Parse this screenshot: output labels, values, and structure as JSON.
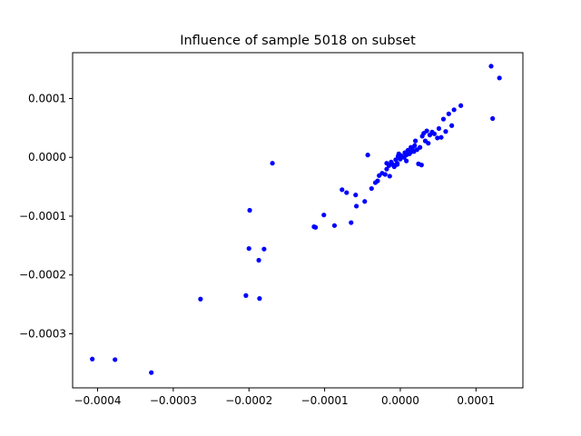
{
  "chart_data": {
    "type": "scatter",
    "title": "Influence of sample 5018 on subset",
    "xlabel": "",
    "ylabel": "",
    "xlim": [
      -0.000433,
      0.000162
    ],
    "ylim": [
      -0.000392,
      0.000178
    ],
    "xticks": [
      {
        "value": -0.0004,
        "label": "−0.0004"
      },
      {
        "value": -0.0003,
        "label": "−0.0003"
      },
      {
        "value": -0.0002,
        "label": "−0.0002"
      },
      {
        "value": -0.0001,
        "label": "−0.0001"
      },
      {
        "value": 0.0,
        "label": "0.0000"
      },
      {
        "value": 0.0001,
        "label": "0.0001"
      }
    ],
    "yticks": [
      {
        "value": 0.0001,
        "label": "0.0001"
      },
      {
        "value": 0.0,
        "label": "0.0000"
      },
      {
        "value": -0.0001,
        "label": "−0.0001"
      },
      {
        "value": -0.0002,
        "label": "−0.0002"
      },
      {
        "value": -0.0003,
        "label": "−0.0003"
      }
    ],
    "grid": false,
    "color": "#0000ff",
    "points": [
      [
        -0.000407,
        -0.000343
      ],
      [
        -0.000377,
        -0.000344
      ],
      [
        -0.000329,
        -0.000366
      ],
      [
        -0.000264,
        -0.000241
      ],
      [
        -0.000204,
        -0.000235
      ],
      [
        -0.000186,
        -0.00024
      ],
      [
        -0.0002,
        -0.000155
      ],
      [
        -0.000187,
        -0.000175
      ],
      [
        -0.00018,
        -0.000156
      ],
      [
        -0.000199,
        -9e-05
      ],
      [
        -0.000169,
        -1e-05
      ],
      [
        -0.000114,
        -0.000118
      ],
      [
        -0.000112,
        -0.000119
      ],
      [
        -0.000101,
        -9.8e-05
      ],
      [
        -8.7e-05,
        -0.000116
      ],
      [
        -7.7e-05,
        -5.5e-05
      ],
      [
        -7.1e-05,
        -6e-05
      ],
      [
        -6.5e-05,
        -0.000111
      ],
      [
        -5.9e-05,
        -6.4e-05
      ],
      [
        -5.8e-05,
        -8.3e-05
      ],
      [
        -4.7e-05,
        -7.5e-05
      ],
      [
        -4.3e-05,
        4e-06
      ],
      [
        -3.8e-05,
        -5.3e-05
      ],
      [
        -3.3e-05,
        -4.3e-05
      ],
      [
        -3e-05,
        -4e-05
      ],
      [
        -2.8e-05,
        -3.1e-05
      ],
      [
        -2.4e-05,
        -2.7e-05
      ],
      [
        -2e-05,
        -2.9e-05
      ],
      [
        -1.8e-05,
        -2e-05
      ],
      [
        -1.5e-05,
        -1.4e-05
      ],
      [
        -1.4e-05,
        -3.2e-05
      ],
      [
        -1.2e-05,
        -8e-06
      ],
      [
        -1e-05,
        -1.2e-05
      ],
      [
        -8e-06,
        -1.6e-05
      ],
      [
        -6e-06,
        -4e-06
      ],
      [
        -4e-06,
        -1e-05
      ],
      [
        -3e-06,
        2e-06
      ],
      [
        -2e-06,
        6e-06
      ],
      [
        0.0,
        -3e-06
      ],
      [
        1e-06,
        3e-06
      ],
      [
        3e-06,
        1e-06
      ],
      [
        5e-06,
        0.0
      ],
      [
        6e-06,
        8e-06
      ],
      [
        8e-06,
        4e-06
      ],
      [
        1e-05,
        1.2e-05
      ],
      [
        1.2e-05,
        6e-06
      ],
      [
        1.4e-05,
        9e-06
      ],
      [
        1.6e-05,
        1.6e-05
      ],
      [
        1.8e-05,
        1e-05
      ],
      [
        1.9e-05,
        2e-05
      ],
      [
        2e-05,
        2.8e-05
      ],
      [
        2.2e-05,
        1.3e-05
      ],
      [
        2.4e-05,
        -1.1e-05
      ],
      [
        2.6e-05,
        1.7e-05
      ],
      [
        2.8e-05,
        -1.3e-05
      ],
      [
        2.9e-05,
        3.6e-05
      ],
      [
        3.1e-05,
        4.1e-05
      ],
      [
        3.3e-05,
        2.8e-05
      ],
      [
        3.5e-05,
        4.5e-05
      ],
      [
        3.7e-05,
        2.4e-05
      ],
      [
        3.9e-05,
        3.8e-05
      ],
      [
        4.2e-05,
        4.3e-05
      ],
      [
        4.5e-05,
        4e-05
      ],
      [
        4.9e-05,
        3.3e-05
      ],
      [
        5.1e-05,
        4.9e-05
      ],
      [
        5.4e-05,
        3.4e-05
      ],
      [
        5.7e-05,
        6.5e-05
      ],
      [
        6e-05,
        4.4e-05
      ],
      [
        6.4e-05,
        7.4e-05
      ],
      [
        6.8e-05,
        5.4e-05
      ],
      [
        7.1e-05,
        8.1e-05
      ],
      [
        8e-05,
        8.8e-05
      ],
      [
        0.00012,
        0.000155
      ],
      [
        0.000122,
        6.6e-05
      ],
      [
        0.000131,
        0.000135
      ],
      [
        -4e-06,
        -1.2e-05
      ],
      [
        8e-06,
        -6e-06
      ],
      [
        -1.8e-05,
        -1e-05
      ],
      [
        1.4e-05,
        1.7e-05
      ]
    ]
  }
}
